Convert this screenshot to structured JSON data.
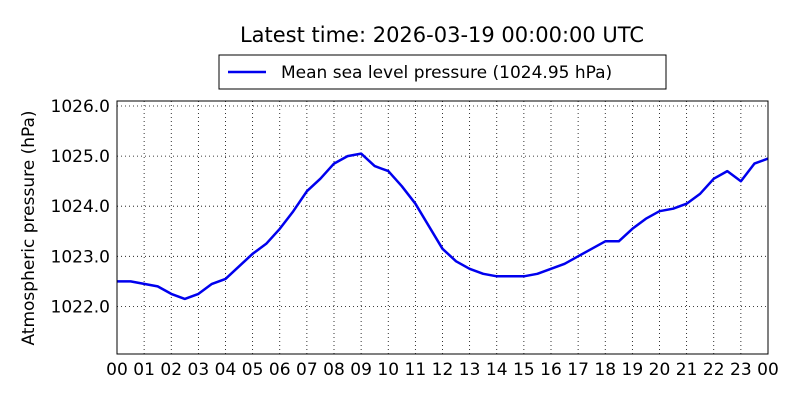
{
  "chart_data": {
    "type": "line",
    "title": "Latest time: 2026-03-19 00:00:00 UTC",
    "xlabel": "",
    "ylabel": "Atmospheric pressure (hPa)",
    "x_ticks": [
      "00",
      "01",
      "02",
      "03",
      "04",
      "05",
      "06",
      "07",
      "08",
      "09",
      "10",
      "11",
      "12",
      "13",
      "14",
      "15",
      "16",
      "17",
      "18",
      "19",
      "20",
      "21",
      "22",
      "23",
      "00"
    ],
    "y_ticks": [
      "1022.0",
      "1023.0",
      "1024.0",
      "1025.0",
      "1026.0"
    ],
    "xlim": [
      0,
      24
    ],
    "ylim": [
      1021.05,
      1026.1
    ],
    "grid": true,
    "legend_position": "top-center",
    "series": [
      {
        "name": "Mean sea level pressure (1024.95 hPa)",
        "color": "#0000ee",
        "x": [
          0,
          0.5,
          1,
          1.5,
          2,
          2.5,
          2.75,
          3,
          3.5,
          4,
          4.5,
          5,
          5.5,
          6,
          6.5,
          7,
          7.5,
          8,
          8.5,
          9,
          9.5,
          10,
          10.5,
          11,
          11.5,
          12,
          12.5,
          13,
          13.5,
          14,
          14.5,
          15,
          15.5,
          16,
          16.5,
          17,
          17.5,
          18,
          18.5,
          19,
          19.5,
          20,
          20.5,
          21,
          21.5,
          22,
          22.5,
          23,
          23.5,
          24
        ],
        "values": [
          1022.5,
          1022.5,
          1022.45,
          1022.4,
          1022.25,
          1022.15,
          1022.2,
          1022.25,
          1022.45,
          1022.55,
          1022.8,
          1023.05,
          1023.25,
          1023.55,
          1023.9,
          1024.3,
          1024.55,
          1024.85,
          1025.0,
          1025.05,
          1024.8,
          1024.7,
          1024.4,
          1024.05,
          1023.6,
          1023.15,
          1022.9,
          1022.75,
          1022.65,
          1022.6,
          1022.6,
          1022.6,
          1022.65,
          1022.75,
          1022.85,
          1023.0,
          1023.15,
          1023.3,
          1023.3,
          1023.55,
          1023.75,
          1023.9,
          1023.95,
          1024.05,
          1024.25,
          1024.55,
          1024.7,
          1024.5,
          1024.85,
          1024.95
        ]
      }
    ]
  }
}
